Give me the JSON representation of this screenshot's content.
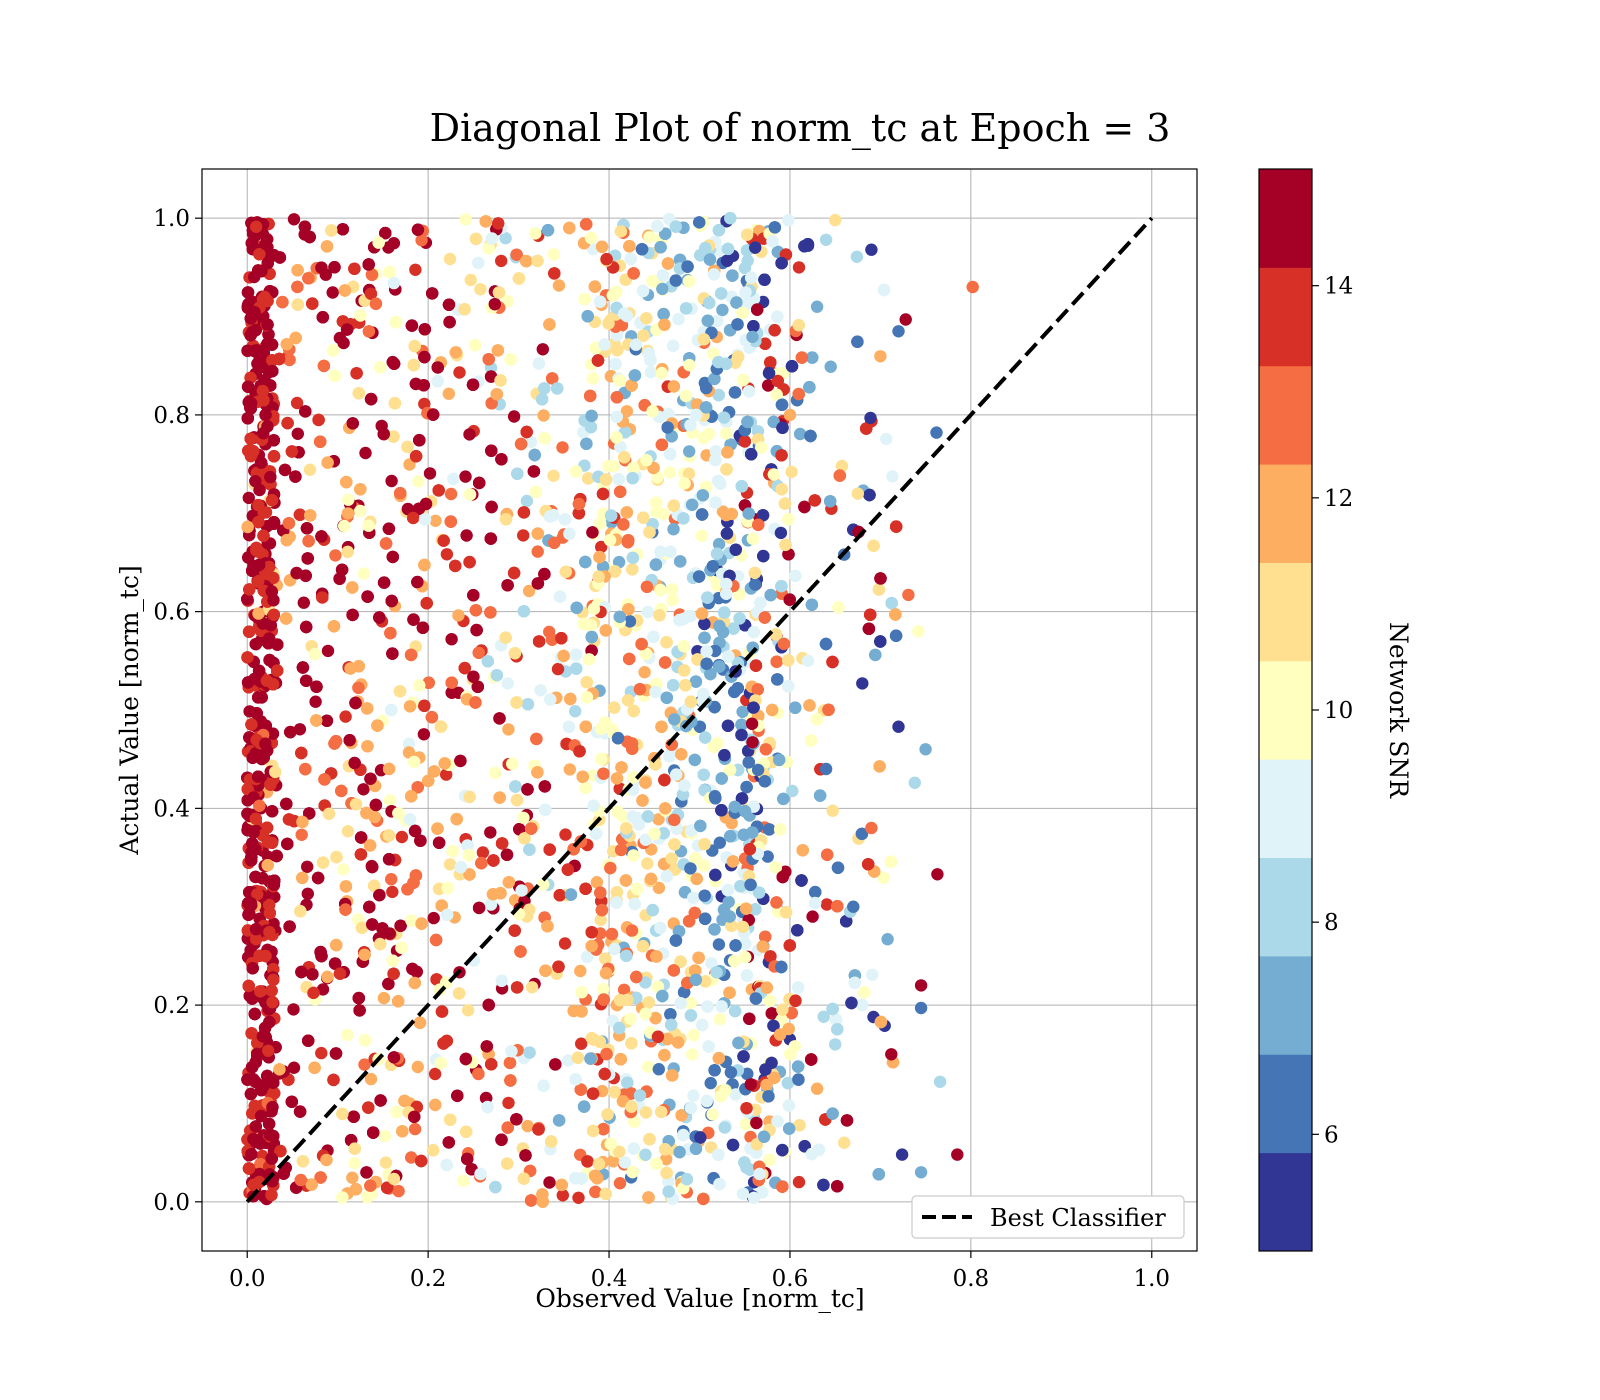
{
  "chart_data": {
    "type": "scatter",
    "title": "Diagonal Plot of norm_tc at Epoch = 3",
    "xlabel": "Observed Value [norm_tc]",
    "ylabel": "Actual Value [norm_tc]",
    "xlim": [
      -0.05,
      1.05
    ],
    "ylim": [
      -0.05,
      1.05
    ],
    "x_ticks": [
      "0.0",
      "0.2",
      "0.4",
      "0.6",
      "0.8",
      "1.0"
    ],
    "y_ticks": [
      "0.0",
      "0.2",
      "0.4",
      "0.6",
      "0.8",
      "1.0"
    ],
    "grid": true,
    "legend": {
      "position": "bottom-right",
      "entries": [
        "Best Classifier"
      ]
    },
    "reference_line": {
      "name": "Best Classifier",
      "x": [
        0,
        1
      ],
      "y": [
        0,
        1
      ],
      "style": "dashed",
      "color": "#000000"
    },
    "colorbar": {
      "label": "Network SNR",
      "range": [
        4.9,
        15.1
      ],
      "ticks": [
        "6",
        "8",
        "10",
        "12",
        "14"
      ],
      "tick_values": [
        6,
        8,
        10,
        12,
        14
      ],
      "colors": [
        "#313695",
        "#4575b4",
        "#74add1",
        "#abd9e9",
        "#e0f3f8",
        "#ffffbf",
        "#fee090",
        "#fdae61",
        "#f46d43",
        "#d73027",
        "#a50026"
      ]
    },
    "points": [
      [
        0.802,
        0.93,
        13.2
      ],
      [
        0.763,
        0.333,
        14.5
      ],
      [
        0.785,
        0.048,
        14.6
      ],
      [
        0.762,
        0.782,
        6.2
      ],
      [
        0.731,
        0.617,
        12.6
      ],
      [
        0.745,
        0.22,
        14.4
      ],
      [
        0.75,
        0.46,
        6.8
      ],
      [
        0.745,
        0.197,
        6.5
      ],
      [
        0.72,
        0.885,
        6.3
      ],
      [
        0.728,
        0.897,
        14.5
      ],
      [
        0.69,
        0.968,
        5.6
      ],
      [
        0.689,
        0.797,
        5.4
      ],
      [
        0.742,
        0.58,
        9.8
      ],
      [
        0.72,
        0.483,
        5.6
      ],
      [
        0.738,
        0.426,
        8.2
      ],
      [
        0.724,
        0.048,
        5.5
      ],
      [
        0.745,
        0.03,
        7.6
      ],
      [
        0.766,
        0.122,
        8.1
      ],
      [
        0.708,
        0.267,
        7.4
      ],
      [
        0.712,
        0.15,
        14.2
      ],
      [
        0.675,
        0.72,
        10.6
      ],
      [
        0.66,
        0.658,
        6.0
      ],
      [
        0.68,
        0.527,
        5.8
      ],
      [
        0.69,
        0.38,
        12.6
      ],
      [
        0.67,
        0.3,
        6.7
      ],
      [
        0.65,
        0.998,
        10.9
      ],
      [
        0.64,
        0.978,
        8.0
      ],
      [
        0.63,
        0.91,
        6.8
      ],
      [
        0.62,
        0.972,
        5.6
      ],
      [
        0.645,
        0.849,
        7.0
      ],
      [
        0.61,
        0.95,
        13.4
      ],
      [
        0.62,
        0.55,
        9.2
      ],
      [
        0.64,
        0.44,
        6.4
      ],
      [
        0.625,
        0.29,
        14.7
      ],
      [
        0.63,
        0.115,
        12.3
      ],
      [
        0.61,
        0.02,
        13.8
      ],
      [
        0.66,
        0.06,
        11.0
      ],
      [
        0.65,
        0.16,
        7.7
      ],
      [
        0.6,
        0.8,
        11.5
      ],
      [
        0.59,
        0.68,
        5.3
      ]
    ]
  }
}
